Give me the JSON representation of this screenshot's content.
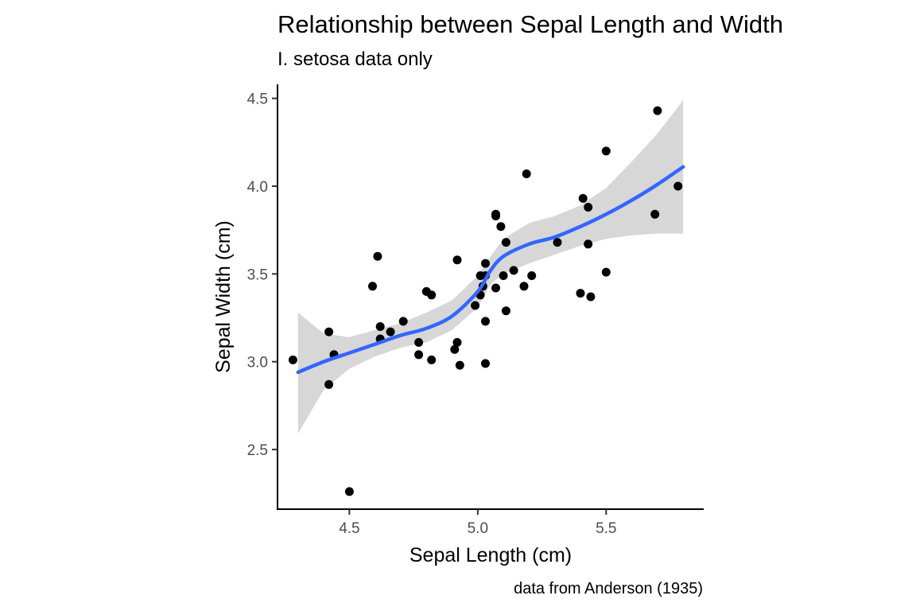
{
  "chart_data": {
    "type": "scatter",
    "title": "Relationship between Sepal Length and Width",
    "subtitle": "I. setosa data only",
    "xlabel": "Sepal Length (cm)",
    "ylabel": "Sepal Width (cm)",
    "caption": "data from Anderson (1935)",
    "xlim": [
      4.22,
      5.88
    ],
    "ylim": [
      2.16,
      4.58
    ],
    "xticks": [
      "4.5",
      "5.0",
      "5.5"
    ],
    "yticks": [
      "2.5",
      "3.0",
      "3.5",
      "4.0",
      "4.5"
    ],
    "grid": false,
    "points": [
      [
        4.28,
        3.01
      ],
      [
        4.42,
        3.17
      ],
      [
        4.42,
        2.87
      ],
      [
        4.44,
        3.04
      ],
      [
        4.5,
        2.26
      ],
      [
        4.59,
        3.43
      ],
      [
        4.61,
        3.6
      ],
      [
        4.62,
        3.2
      ],
      [
        4.62,
        3.13
      ],
      [
        4.66,
        3.17
      ],
      [
        4.71,
        3.23
      ],
      [
        4.77,
        3.11
      ],
      [
        4.77,
        3.04
      ],
      [
        4.8,
        3.4
      ],
      [
        4.82,
        3.38
      ],
      [
        4.82,
        3.01
      ],
      [
        4.91,
        3.07
      ],
      [
        4.92,
        3.11
      ],
      [
        4.92,
        3.58
      ],
      [
        4.93,
        2.98
      ],
      [
        4.99,
        3.32
      ],
      [
        5.01,
        3.49
      ],
      [
        5.01,
        3.38
      ],
      [
        5.02,
        3.43
      ],
      [
        5.03,
        3.56
      ],
      [
        5.03,
        3.49
      ],
      [
        5.03,
        3.23
      ],
      [
        5.03,
        2.99
      ],
      [
        5.07,
        3.84
      ],
      [
        5.07,
        3.83
      ],
      [
        5.07,
        3.42
      ],
      [
        5.09,
        3.77
      ],
      [
        5.1,
        3.49
      ],
      [
        5.11,
        3.68
      ],
      [
        5.11,
        3.29
      ],
      [
        5.14,
        3.52
      ],
      [
        5.18,
        3.43
      ],
      [
        5.19,
        4.07
      ],
      [
        5.21,
        3.49
      ],
      [
        5.31,
        3.68
      ],
      [
        5.4,
        3.39
      ],
      [
        5.41,
        3.93
      ],
      [
        5.43,
        3.88
      ],
      [
        5.43,
        3.67
      ],
      [
        5.44,
        3.37
      ],
      [
        5.5,
        3.51
      ],
      [
        5.5,
        4.2
      ],
      [
        5.69,
        3.84
      ],
      [
        5.7,
        4.43
      ],
      [
        5.78,
        4.0
      ]
    ],
    "smooth": {
      "method": "loess",
      "color": "#3366ff",
      "band_color": "#d3d3d3",
      "x": [
        4.3,
        4.4,
        4.5,
        4.6,
        4.7,
        4.8,
        4.9,
        5.0,
        5.05,
        5.1,
        5.2,
        5.3,
        5.4,
        5.5,
        5.6,
        5.7,
        5.8
      ],
      "y": [
        2.94,
        3.0,
        3.05,
        3.1,
        3.15,
        3.19,
        3.26,
        3.4,
        3.52,
        3.6,
        3.67,
        3.71,
        3.77,
        3.84,
        3.92,
        4.01,
        4.11
      ],
      "lower": [
        2.59,
        2.84,
        2.96,
        3.03,
        3.08,
        3.11,
        3.18,
        3.31,
        3.44,
        3.5,
        3.56,
        3.61,
        3.66,
        3.7,
        3.72,
        3.73,
        3.73
      ],
      "upper": [
        3.28,
        3.16,
        3.14,
        3.18,
        3.22,
        3.28,
        3.35,
        3.49,
        3.6,
        3.7,
        3.79,
        3.83,
        3.89,
        3.99,
        4.14,
        4.3,
        4.49
      ]
    },
    "point_color": "#000000",
    "axis_color": "#000000"
  }
}
